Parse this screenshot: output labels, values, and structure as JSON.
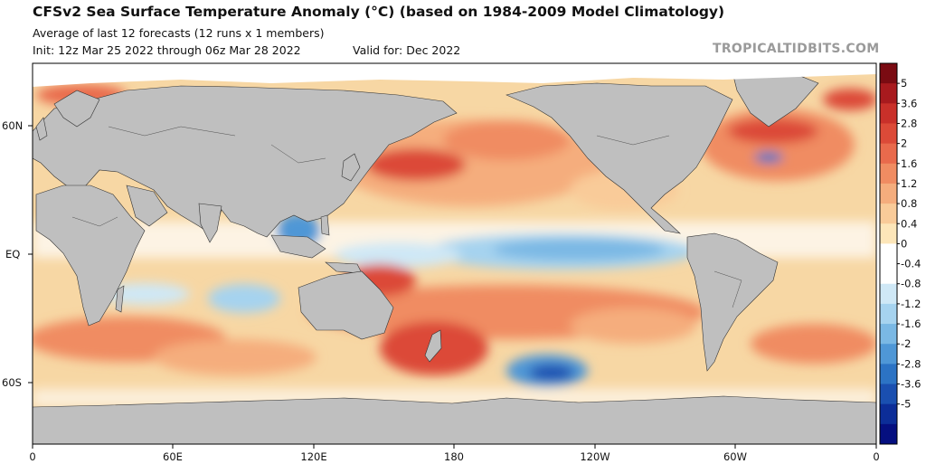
{
  "header": {
    "title": "CFSv2 Sea Surface Temperature Anomaly (°C) (based on 1984-2009 Model Climatology)",
    "subtitle": "Average of last 12 forecasts (12 runs x 1 members)",
    "init": "Init: 12z Mar 25 2022 through 06z Mar 28 2022",
    "valid": "Valid for: Dec 2022",
    "brand": "TROPICALTIDBITS.COM"
  },
  "map": {
    "projection": "equirectangular, centered 180",
    "lat_labels": [
      "60N",
      "EQ",
      "60S"
    ],
    "lon_labels": [
      "0",
      "60E",
      "120E",
      "180",
      "120W",
      "60W",
      "0"
    ],
    "colors": {
      "land": "#bfbfbf",
      "ice": "#ffffff",
      "border": "#222222",
      "frame": "#000000"
    }
  },
  "colorbar": {
    "ticks": [
      "5",
      "3.6",
      "2.8",
      "2",
      "1.6",
      "1.2",
      "0.8",
      "0.4",
      "0",
      "-0.4",
      "-0.8",
      "-1.2",
      "-1.6",
      "-2",
      "-2.8",
      "-3.6",
      "-5"
    ],
    "colors": [
      "#7a0b12",
      "#a81a1e",
      "#c9302a",
      "#dc4a38",
      "#e96a4c",
      "#f08c62",
      "#f5ad7d",
      "#f9cb99",
      "#fde6b9",
      "#ffffff",
      "#ffffff",
      "#cfe8f6",
      "#a6d3ef",
      "#7ab8e4",
      "#4f97d6",
      "#2c73c4",
      "#1a4fb0",
      "#0c2d98",
      "#050f80"
    ]
  }
}
